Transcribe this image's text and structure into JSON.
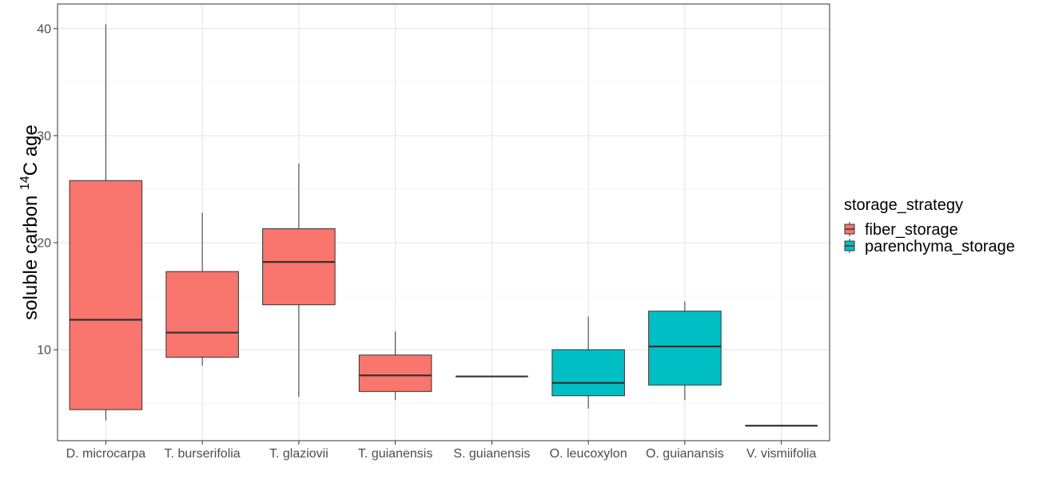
{
  "chart_data": {
    "type": "boxplot",
    "title": "",
    "xlabel": "",
    "ylabel_prefix": "soluble carbon ",
    "ylabel_super": "14",
    "ylabel_suffix": "C age",
    "ylim": [
      1.5,
      42.3
    ],
    "yticks": [
      10,
      20,
      30,
      40
    ],
    "grid": true,
    "legend": {
      "title": "storage_strategy",
      "placement": "right",
      "entries": [
        {
          "name": "fiber_storage",
          "color": "#F8766D"
        },
        {
          "name": "parenchyma_storage",
          "color": "#00BFC4"
        }
      ]
    },
    "categories": [
      "D. microcarpa",
      "T. burserifolia",
      "T. glaziovii",
      "T. guianensis",
      "S. guianensis",
      "O. leucoxylon",
      "O. guianansis",
      "V. vismiifolia"
    ],
    "boxes": [
      {
        "category": "D. microcarpa",
        "group": "fiber_storage",
        "min": 3.4,
        "q1": 4.4,
        "median": 12.8,
        "q3": 25.8,
        "max": 40.4
      },
      {
        "category": "T. burserifolia",
        "group": "fiber_storage",
        "min": 8.5,
        "q1": 9.3,
        "median": 11.6,
        "q3": 17.3,
        "max": 22.8
      },
      {
        "category": "T. glaziovii",
        "group": "fiber_storage",
        "min": 5.6,
        "q1": 14.2,
        "median": 18.2,
        "q3": 21.3,
        "max": 27.4
      },
      {
        "category": "T. guianensis",
        "group": "fiber_storage",
        "min": 5.3,
        "q1": 6.1,
        "median": 7.6,
        "q3": 9.5,
        "max": 11.7
      },
      {
        "category": "S. guianensis",
        "group": "fiber_storage",
        "min": 7.5,
        "q1": 7.5,
        "median": 7.5,
        "q3": 7.5,
        "max": 7.5
      },
      {
        "category": "O. leucoxylon",
        "group": "parenchyma_storage",
        "min": 4.5,
        "q1": 5.7,
        "median": 6.9,
        "q3": 10.0,
        "max": 13.1
      },
      {
        "category": "O. guianansis",
        "group": "parenchyma_storage",
        "min": 5.3,
        "q1": 6.7,
        "median": 10.3,
        "q3": 13.6,
        "max": 14.5
      },
      {
        "category": "V. vismiifolia",
        "group": "parenchyma_storage",
        "min": 2.9,
        "q1": 2.9,
        "median": 2.9,
        "q3": 2.9,
        "max": 2.9
      }
    ]
  }
}
